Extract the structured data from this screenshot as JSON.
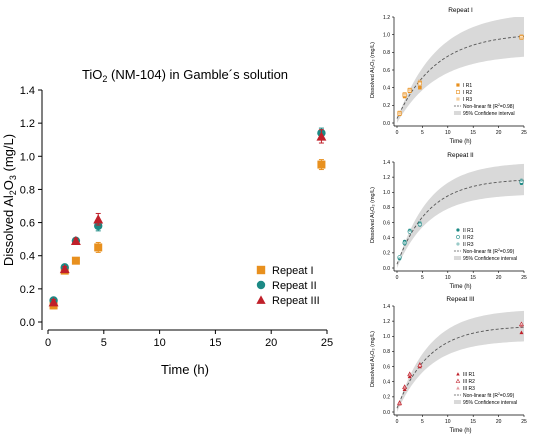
{
  "chart_data": [
    {
      "type": "scatter",
      "title_main": "TiO",
      "title_sub": "2",
      "title_rest": " (NM-104) in Gamble´s solution",
      "xlabel": "Time (h)",
      "ylabel_main": "Dissolved Al",
      "ylabel_sub1": "2",
      "ylabel_mid": "O",
      "ylabel_sub2": "3",
      "ylabel_rest": " (mg/L)",
      "xlim": [
        0,
        25
      ],
      "ylim": [
        0,
        1.4
      ],
      "xticks": [
        "0",
        "5",
        "10",
        "15",
        "20",
        "25"
      ],
      "yticks": [
        "0.0",
        "0.2",
        "0.4",
        "0.6",
        "0.8",
        "1.0",
        "1.2",
        "1.4"
      ],
      "legend_position": "bottom-right",
      "series": [
        {
          "name": "Repeat I",
          "marker": "square",
          "color": "#e8901e",
          "x": [
            0.5,
            1.5,
            2.5,
            4.5,
            24.5
          ],
          "y": [
            0.1,
            0.31,
            0.37,
            0.45,
            0.95
          ],
          "err": [
            0.02,
            0.02,
            0.015,
            0.03,
            0.03
          ]
        },
        {
          "name": "Repeat II",
          "marker": "circle",
          "color": "#1c8a85",
          "x": [
            0.5,
            1.5,
            2.5,
            4.5,
            24.5
          ],
          "y": [
            0.13,
            0.33,
            0.49,
            0.58,
            1.14
          ],
          "err": [
            0.015,
            0.015,
            0.015,
            0.03,
            0.03
          ]
        },
        {
          "name": "Repeat III",
          "marker": "triangle",
          "color": "#c0202a",
          "x": [
            0.5,
            1.5,
            2.5,
            4.5,
            24.5
          ],
          "y": [
            0.12,
            0.32,
            0.49,
            0.62,
            1.12
          ],
          "err": [
            0.015,
            0.015,
            0.015,
            0.035,
            0.04
          ]
        }
      ]
    },
    {
      "type": "scatter",
      "title": "Repeat I",
      "xlabel": "Time (h)",
      "ylabel": "Dissolved Al₂O₃ (mg/L)",
      "xlim": [
        0,
        25
      ],
      "ylim": [
        0,
        1.2
      ],
      "xticks": [
        "0",
        "5",
        "10",
        "15",
        "20",
        "25"
      ],
      "yticks": [
        "0.0",
        "0.2",
        "0.4",
        "0.6",
        "0.8",
        "1.0",
        "1.2"
      ],
      "legend_position": "bottom-right",
      "color": "#e8901e",
      "marker": "square",
      "series": [
        {
          "name": "I R1",
          "x": [
            0.5,
            1.5,
            2.5,
            4.5,
            24.5
          ],
          "y": [
            0.1,
            0.3,
            0.36,
            0.4,
            0.98
          ]
        },
        {
          "name": "I R2",
          "x": [
            0.5,
            1.5,
            2.5,
            4.5,
            24.5
          ],
          "y": [
            0.11,
            0.32,
            0.37,
            0.45,
            0.97
          ]
        },
        {
          "name": "I R3",
          "x": [
            0.5,
            1.5,
            2.5,
            4.5,
            24.5
          ],
          "y": [
            0.12,
            0.33,
            0.38,
            0.47,
            0.96
          ]
        }
      ],
      "fit_label_main": "Non-linear fit (R",
      "fit_label_sup": "2",
      "fit_label_rest": "=0.98)",
      "ci_label": "95% Confidene interval",
      "fit": {
        "ymax": 1.02,
        "k": 0.13
      },
      "ci": {
        "upper": 1.22,
        "lower": 0.78,
        "k": 0.13
      }
    },
    {
      "type": "scatter",
      "title": "Repeat II",
      "xlabel": "Time (h)",
      "ylabel": "Dissolved Al₂O₃ (mg/L)",
      "xlim": [
        0,
        25
      ],
      "ylim": [
        0,
        1.4
      ],
      "xticks": [
        "0",
        "5",
        "10",
        "15",
        "20",
        "25"
      ],
      "yticks": [
        "0.0",
        "0.2",
        "0.4",
        "0.6",
        "0.8",
        "1.0",
        "1.2",
        "1.4"
      ],
      "legend_position": "bottom-right",
      "color": "#1c8a85",
      "marker": "circle",
      "series": [
        {
          "name": "II R1",
          "x": [
            0.5,
            1.5,
            2.5,
            4.5,
            24.5
          ],
          "y": [
            0.13,
            0.35,
            0.49,
            0.57,
            1.12
          ]
        },
        {
          "name": "II R2",
          "x": [
            0.5,
            1.5,
            2.5,
            4.5,
            24.5
          ],
          "y": [
            0.14,
            0.33,
            0.48,
            0.58,
            1.14
          ]
        },
        {
          "name": "II R3",
          "x": [
            0.5,
            1.5,
            2.5,
            4.5,
            24.5
          ],
          "y": [
            0.12,
            0.32,
            0.5,
            0.6,
            1.16
          ]
        }
      ],
      "fit_label_main": "Non-linear fit (R",
      "fit_label_sup": "2",
      "fit_label_rest": "=0.99)",
      "ci_label": "95% Confidence interval",
      "fit": {
        "ymax": 1.18,
        "k": 0.16
      },
      "ci": {
        "upper": 1.36,
        "lower": 0.98,
        "k": 0.16
      }
    },
    {
      "type": "scatter",
      "title": "Repeat III",
      "xlabel": "Time (h)",
      "ylabel": "Dissolved Al₂O₃ (mg/L)",
      "xlim": [
        0,
        25
      ],
      "ylim": [
        0,
        1.4
      ],
      "xticks": [
        "0",
        "5",
        "10",
        "15",
        "20",
        "25"
      ],
      "yticks": [
        "0.0",
        "0.2",
        "0.4",
        "0.6",
        "0.8",
        "1.0",
        "1.2",
        "1.4"
      ],
      "legend_position": "bottom-right",
      "color": "#c0202a",
      "marker": "triangle",
      "series": [
        {
          "name": "III R1",
          "x": [
            0.5,
            1.5,
            2.5,
            4.5,
            24.5
          ],
          "y": [
            0.11,
            0.3,
            0.47,
            0.6,
            1.05
          ]
        },
        {
          "name": "III R2",
          "x": [
            0.5,
            1.5,
            2.5,
            4.5,
            24.5
          ],
          "y": [
            0.12,
            0.33,
            0.5,
            0.62,
            1.16
          ]
        },
        {
          "name": "III R3",
          "x": [
            0.5,
            1.5,
            2.5,
            4.5,
            24.5
          ],
          "y": [
            0.13,
            0.34,
            0.51,
            0.64,
            1.14
          ]
        }
      ],
      "fit_label_main": "Non-linear fit (R",
      "fit_label_sup": "2",
      "fit_label_rest": "=0.99)",
      "ci_label": "95% Confidence interval",
      "fit": {
        "ymax": 1.14,
        "k": 0.16
      },
      "ci": {
        "upper": 1.32,
        "lower": 0.95,
        "k": 0.16
      }
    }
  ]
}
